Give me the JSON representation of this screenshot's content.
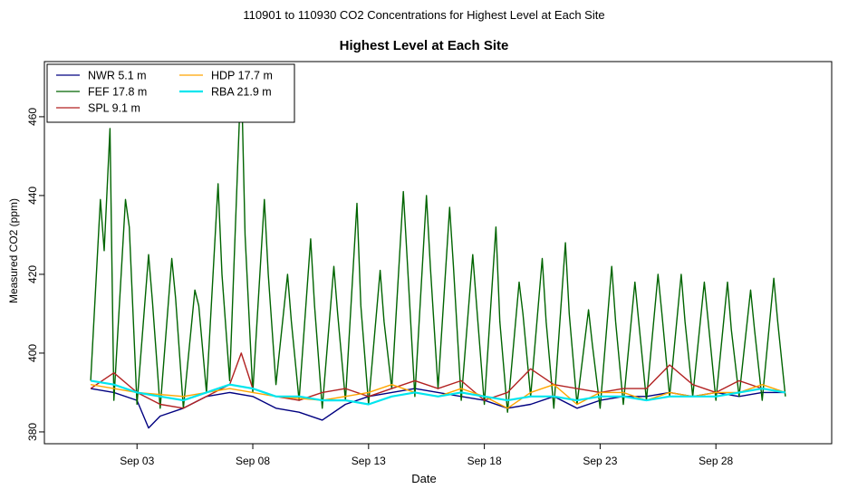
{
  "chart_data": {
    "type": "line",
    "suptitle": "110901  to  110930 CO2 Concentrations for Highest Level at Each Site",
    "title": "Highest Level at Each Site",
    "xlabel": "Date",
    "ylabel": "Measured CO2 (ppm)",
    "xlim": [
      "2011-08-30T00:00",
      "2011-10-03T00:00"
    ],
    "ylim": [
      377,
      474
    ],
    "x_ticks": [
      {
        "label": "Sep 03",
        "date": "2011-09-03"
      },
      {
        "label": "Sep 08",
        "date": "2011-09-08"
      },
      {
        "label": "Sep 13",
        "date": "2011-09-13"
      },
      {
        "label": "Sep 18",
        "date": "2011-09-18"
      },
      {
        "label": "Sep 23",
        "date": "2011-09-23"
      },
      {
        "label": "Sep 28",
        "date": "2011-09-28"
      }
    ],
    "y_ticks": [
      380,
      400,
      420,
      440,
      460
    ],
    "grid": false,
    "legend_position": "top-left",
    "series": [
      {
        "name": "NWR",
        "height": "5.1 m",
        "color": "#000080",
        "x": [
          "2011-09-01",
          "2011-09-02",
          "2011-09-03",
          "2011-09-03T12:00",
          "2011-09-04",
          "2011-09-05",
          "2011-09-06",
          "2011-09-07",
          "2011-09-08",
          "2011-09-09",
          "2011-09-10",
          "2011-09-11",
          "2011-09-12",
          "2011-09-13",
          "2011-09-14",
          "2011-09-15",
          "2011-09-16",
          "2011-09-17",
          "2011-09-18",
          "2011-09-19",
          "2011-09-20",
          "2011-09-21",
          "2011-09-22",
          "2011-09-23",
          "2011-09-24",
          "2011-09-25",
          "2011-09-26",
          "2011-09-27",
          "2011-09-28",
          "2011-09-29",
          "2011-09-30",
          "2011-10-01"
        ],
        "values": [
          391,
          390,
          388,
          381,
          384,
          386,
          389,
          390,
          389,
          386,
          385,
          383,
          387,
          389,
          390,
          391,
          390,
          389,
          388,
          386,
          387,
          389,
          386,
          388,
          389,
          389,
          390,
          389,
          390,
          389,
          390,
          390
        ]
      },
      {
        "name": "FEF",
        "height": "17.8 m",
        "color": "#006400",
        "x": [
          "2011-09-01",
          "2011-09-01T10:00",
          "2011-09-01T14:00",
          "2011-09-01T20:00",
          "2011-09-02",
          "2011-09-02T12:00",
          "2011-09-02T16:00",
          "2011-09-03",
          "2011-09-03T12:00",
          "2011-09-03T16:00",
          "2011-09-04",
          "2011-09-04T12:00",
          "2011-09-04T16:00",
          "2011-09-05",
          "2011-09-05T12:00",
          "2011-09-05T16:00",
          "2011-09-06",
          "2011-09-06T12:00",
          "2011-09-06T16:00",
          "2011-09-07",
          "2011-09-07T12:00",
          "2011-09-07T16:00",
          "2011-09-08",
          "2011-09-08T12:00",
          "2011-09-08T16:00",
          "2011-09-09",
          "2011-09-09T12:00",
          "2011-09-09T16:00",
          "2011-09-10",
          "2011-09-10T12:00",
          "2011-09-10T16:00",
          "2011-09-11",
          "2011-09-11T12:00",
          "2011-09-11T16:00",
          "2011-09-12",
          "2011-09-12T12:00",
          "2011-09-12T16:00",
          "2011-09-13",
          "2011-09-13T12:00",
          "2011-09-13T16:00",
          "2011-09-14",
          "2011-09-14T12:00",
          "2011-09-14T16:00",
          "2011-09-15",
          "2011-09-15T12:00",
          "2011-09-15T16:00",
          "2011-09-16",
          "2011-09-16T12:00",
          "2011-09-16T16:00",
          "2011-09-17",
          "2011-09-17T12:00",
          "2011-09-17T16:00",
          "2011-09-18",
          "2011-09-18T12:00",
          "2011-09-18T16:00",
          "2011-09-19",
          "2011-09-19T12:00",
          "2011-09-19T16:00",
          "2011-09-20",
          "2011-09-20T12:00",
          "2011-09-20T16:00",
          "2011-09-21",
          "2011-09-21T12:00",
          "2011-09-21T16:00",
          "2011-09-22",
          "2011-09-22T12:00",
          "2011-09-22T16:00",
          "2011-09-23",
          "2011-09-23T12:00",
          "2011-09-23T16:00",
          "2011-09-24",
          "2011-09-24T12:00",
          "2011-09-24T16:00",
          "2011-09-25",
          "2011-09-25T12:00",
          "2011-09-25T16:00",
          "2011-09-26",
          "2011-09-26T12:00",
          "2011-09-26T16:00",
          "2011-09-27",
          "2011-09-27T12:00",
          "2011-09-27T16:00",
          "2011-09-28",
          "2011-09-28T12:00",
          "2011-09-28T16:00",
          "2011-09-29",
          "2011-09-29T12:00",
          "2011-09-29T16:00",
          "2011-09-30",
          "2011-09-30T12:00",
          "2011-09-30T16:00",
          "2011-10-01"
        ],
        "values": [
          393,
          439,
          426,
          457,
          388,
          439,
          432,
          387,
          425,
          413,
          386,
          424,
          414,
          386,
          416,
          412,
          390,
          443,
          420,
          393,
          472,
          430,
          390,
          439,
          420,
          392,
          420,
          408,
          388,
          429,
          412,
          386,
          422,
          410,
          388,
          438,
          412,
          387,
          421,
          408,
          391,
          441,
          424,
          389,
          440,
          422,
          391,
          437,
          422,
          388,
          425,
          412,
          387,
          432,
          408,
          385,
          418,
          410,
          389,
          424,
          408,
          386,
          428,
          410,
          387,
          411,
          402,
          386,
          422,
          408,
          387,
          418,
          408,
          388,
          420,
          410,
          389,
          420,
          408,
          389,
          418,
          408,
          388,
          418,
          406,
          389,
          416,
          406,
          388,
          419,
          408,
          389
        ]
      },
      {
        "name": "SPL",
        "height": "9.1 m",
        "color": "#b22222",
        "x": [
          "2011-09-01",
          "2011-09-02",
          "2011-09-03",
          "2011-09-04",
          "2011-09-05",
          "2011-09-06",
          "2011-09-07",
          "2011-09-07T12:00",
          "2011-09-08",
          "2011-09-09",
          "2011-09-10",
          "2011-09-11",
          "2011-09-12",
          "2011-09-13",
          "2011-09-14",
          "2011-09-15",
          "2011-09-16",
          "2011-09-17",
          "2011-09-18",
          "2011-09-19",
          "2011-09-20",
          "2011-09-21",
          "2011-09-22",
          "2011-09-23",
          "2011-09-24",
          "2011-09-25",
          "2011-09-26",
          "2011-09-27",
          "2011-09-28",
          "2011-09-29",
          "2011-09-30",
          "2011-10-01"
        ],
        "values": [
          391,
          395,
          390,
          387,
          386,
          389,
          392,
          400,
          391,
          389,
          388,
          390,
          391,
          389,
          391,
          393,
          391,
          393,
          388,
          390,
          396,
          392,
          391,
          390,
          391,
          391,
          397,
          392,
          390,
          393,
          391,
          390
        ]
      },
      {
        "name": "HDP",
        "height": "17.7 m",
        "color": "#ffa500",
        "x": [
          "2011-09-01",
          "2011-09-03",
          "2011-09-05",
          "2011-09-07",
          "2011-09-09",
          "2011-09-11",
          "2011-09-13",
          "2011-09-14",
          "2011-09-15",
          "2011-09-16",
          "2011-09-17",
          "2011-09-18",
          "2011-09-19",
          "2011-09-20",
          "2011-09-21",
          "2011-09-22",
          "2011-09-23",
          "2011-09-24",
          "2011-09-25",
          "2011-09-26",
          "2011-09-27",
          "2011-09-28",
          "2011-09-29",
          "2011-09-30",
          "2011-10-01"
        ],
        "values": [
          392,
          390,
          389,
          391,
          389,
          388,
          390,
          392,
          390,
          389,
          391,
          389,
          386,
          390,
          392,
          387,
          390,
          390,
          388,
          390,
          389,
          390,
          390,
          392,
          390
        ]
      },
      {
        "name": "RBA",
        "height": "21.9 m",
        "color": "#00e5ee",
        "x": [
          "2011-09-01",
          "2011-09-02",
          "2011-09-03",
          "2011-09-04",
          "2011-09-05",
          "2011-09-06",
          "2011-09-07",
          "2011-09-08",
          "2011-09-09",
          "2011-09-10",
          "2011-09-11",
          "2011-09-12",
          "2011-09-13",
          "2011-09-14",
          "2011-09-15",
          "2011-09-16",
          "2011-09-17",
          "2011-09-18",
          "2011-09-19",
          "2011-09-20",
          "2011-09-21",
          "2011-09-22",
          "2011-09-23",
          "2011-09-24",
          "2011-09-25",
          "2011-09-26",
          "2011-09-27",
          "2011-09-28",
          "2011-09-29",
          "2011-09-30",
          "2011-10-01"
        ],
        "values": [
          393,
          392,
          390,
          389,
          388,
          390,
          392,
          391,
          389,
          389,
          388,
          388,
          387,
          389,
          390,
          389,
          390,
          389,
          388,
          389,
          389,
          388,
          389,
          389,
          388,
          389,
          389,
          389,
          390,
          391,
          390
        ]
      }
    ]
  }
}
